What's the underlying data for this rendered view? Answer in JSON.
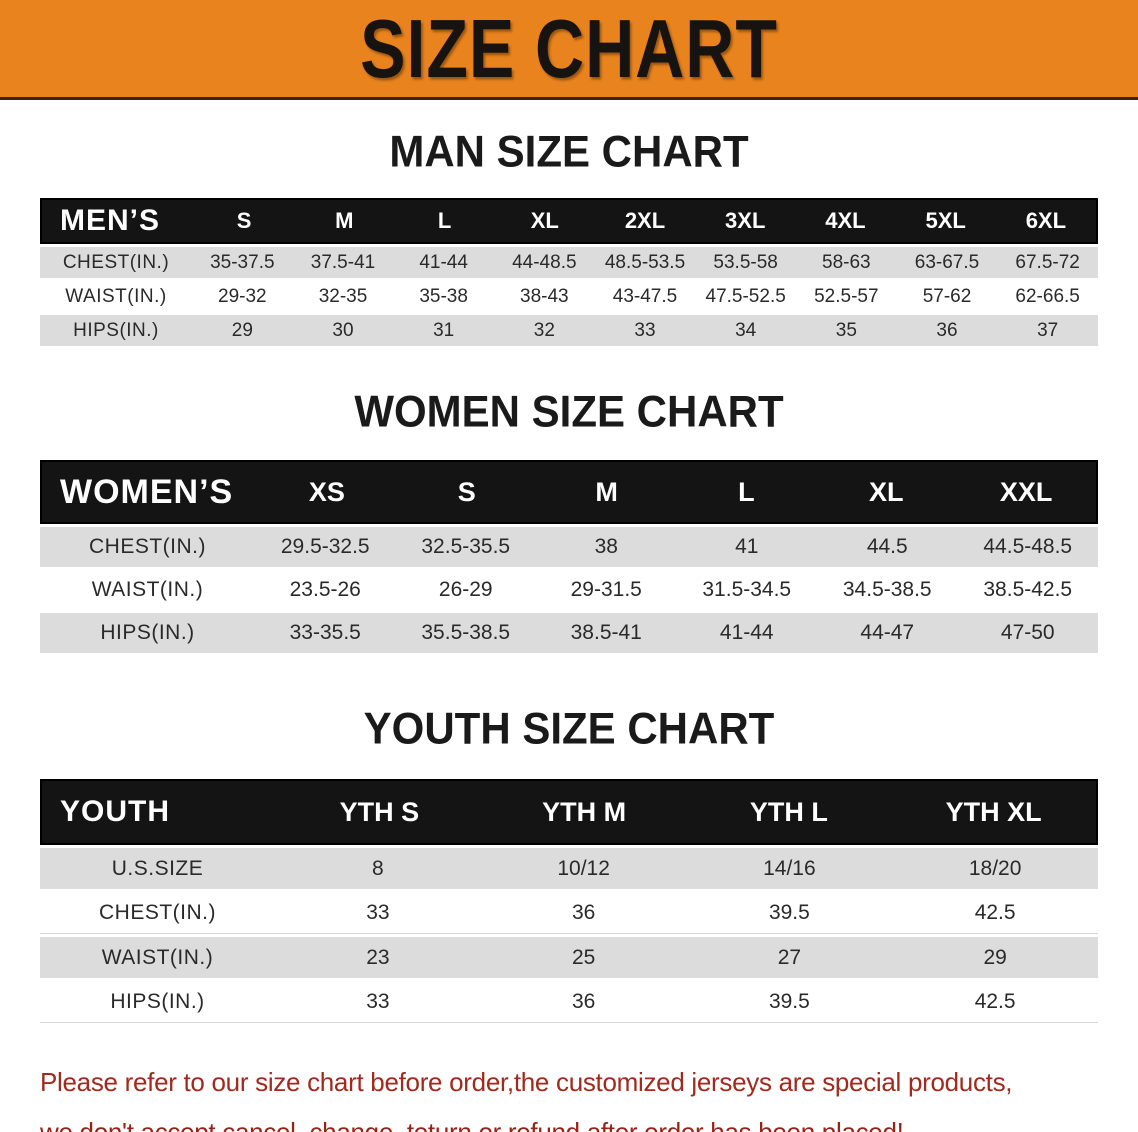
{
  "banner": {
    "title": "SIZE CHART"
  },
  "colors": {
    "banner_orange": "#E8831D",
    "header_black": "#141414",
    "row_gray": "#DCDCDC",
    "disclaimer_red": "#A12A1C"
  },
  "men_section": {
    "heading": "MAN SIZE CHART",
    "table": {
      "label": "MEN’S",
      "sizes": [
        "S",
        "M",
        "L",
        "XL",
        "2XL",
        "3XL",
        "4XL",
        "5XL",
        "6XL"
      ],
      "rows": [
        {
          "label": "CHEST(IN.)",
          "values": [
            "35-37.5",
            "37.5-41",
            "41-44",
            "44-48.5",
            "48.5-53.5",
            "53.5-58",
            "58-63",
            "63-67.5",
            "67.5-72"
          ]
        },
        {
          "label": "WAIST(IN.)",
          "values": [
            "29-32",
            "32-35",
            "35-38",
            "38-43",
            "43-47.5",
            "47.5-52.5",
            "52.5-57",
            "57-62",
            "62-66.5"
          ]
        },
        {
          "label": "HIPS(IN.)",
          "values": [
            "29",
            "30",
            "31",
            "32",
            "33",
            "34",
            "35",
            "36",
            "37"
          ]
        }
      ]
    }
  },
  "women_section": {
    "heading": "WOMEN SIZE CHART",
    "table": {
      "label": "WOMEN’S",
      "sizes": [
        "XS",
        "S",
        "M",
        "L",
        "XL",
        "XXL"
      ],
      "rows": [
        {
          "label": "CHEST(IN.)",
          "values": [
            "29.5-32.5",
            "32.5-35.5",
            "38",
            "41",
            "44.5",
            "44.5-48.5"
          ]
        },
        {
          "label": "WAIST(IN.)",
          "values": [
            "23.5-26",
            "26-29",
            "29-31.5",
            "31.5-34.5",
            "34.5-38.5",
            "38.5-42.5"
          ]
        },
        {
          "label": "HIPS(IN.)",
          "values": [
            "33-35.5",
            "35.5-38.5",
            "38.5-41",
            "41-44",
            "44-47",
            "47-50"
          ]
        }
      ]
    }
  },
  "youth_section": {
    "heading": "YOUTH SIZE CHART",
    "table": {
      "label": "YOUTH",
      "sizes": [
        "YTH S",
        "YTH M",
        "YTH L",
        "YTH XL"
      ],
      "rows": [
        {
          "label": "U.S.SIZE",
          "values": [
            "8",
            "10/12",
            "14/16",
            "18/20"
          ]
        },
        {
          "label": "CHEST(IN.)",
          "values": [
            "33",
            "36",
            "39.5",
            "42.5"
          ]
        },
        {
          "label": "WAIST(IN.)",
          "values": [
            "23",
            "25",
            "27",
            "29"
          ]
        },
        {
          "label": "HIPS(IN.)",
          "values": [
            "33",
            "36",
            "39.5",
            "42.5"
          ]
        }
      ]
    }
  },
  "disclaimer": {
    "line1": "Please refer to our size chart before order,the customized jerseys are special products,",
    "line2": "we don't accept cancel, change, teturn or refund after order has been placed!"
  }
}
